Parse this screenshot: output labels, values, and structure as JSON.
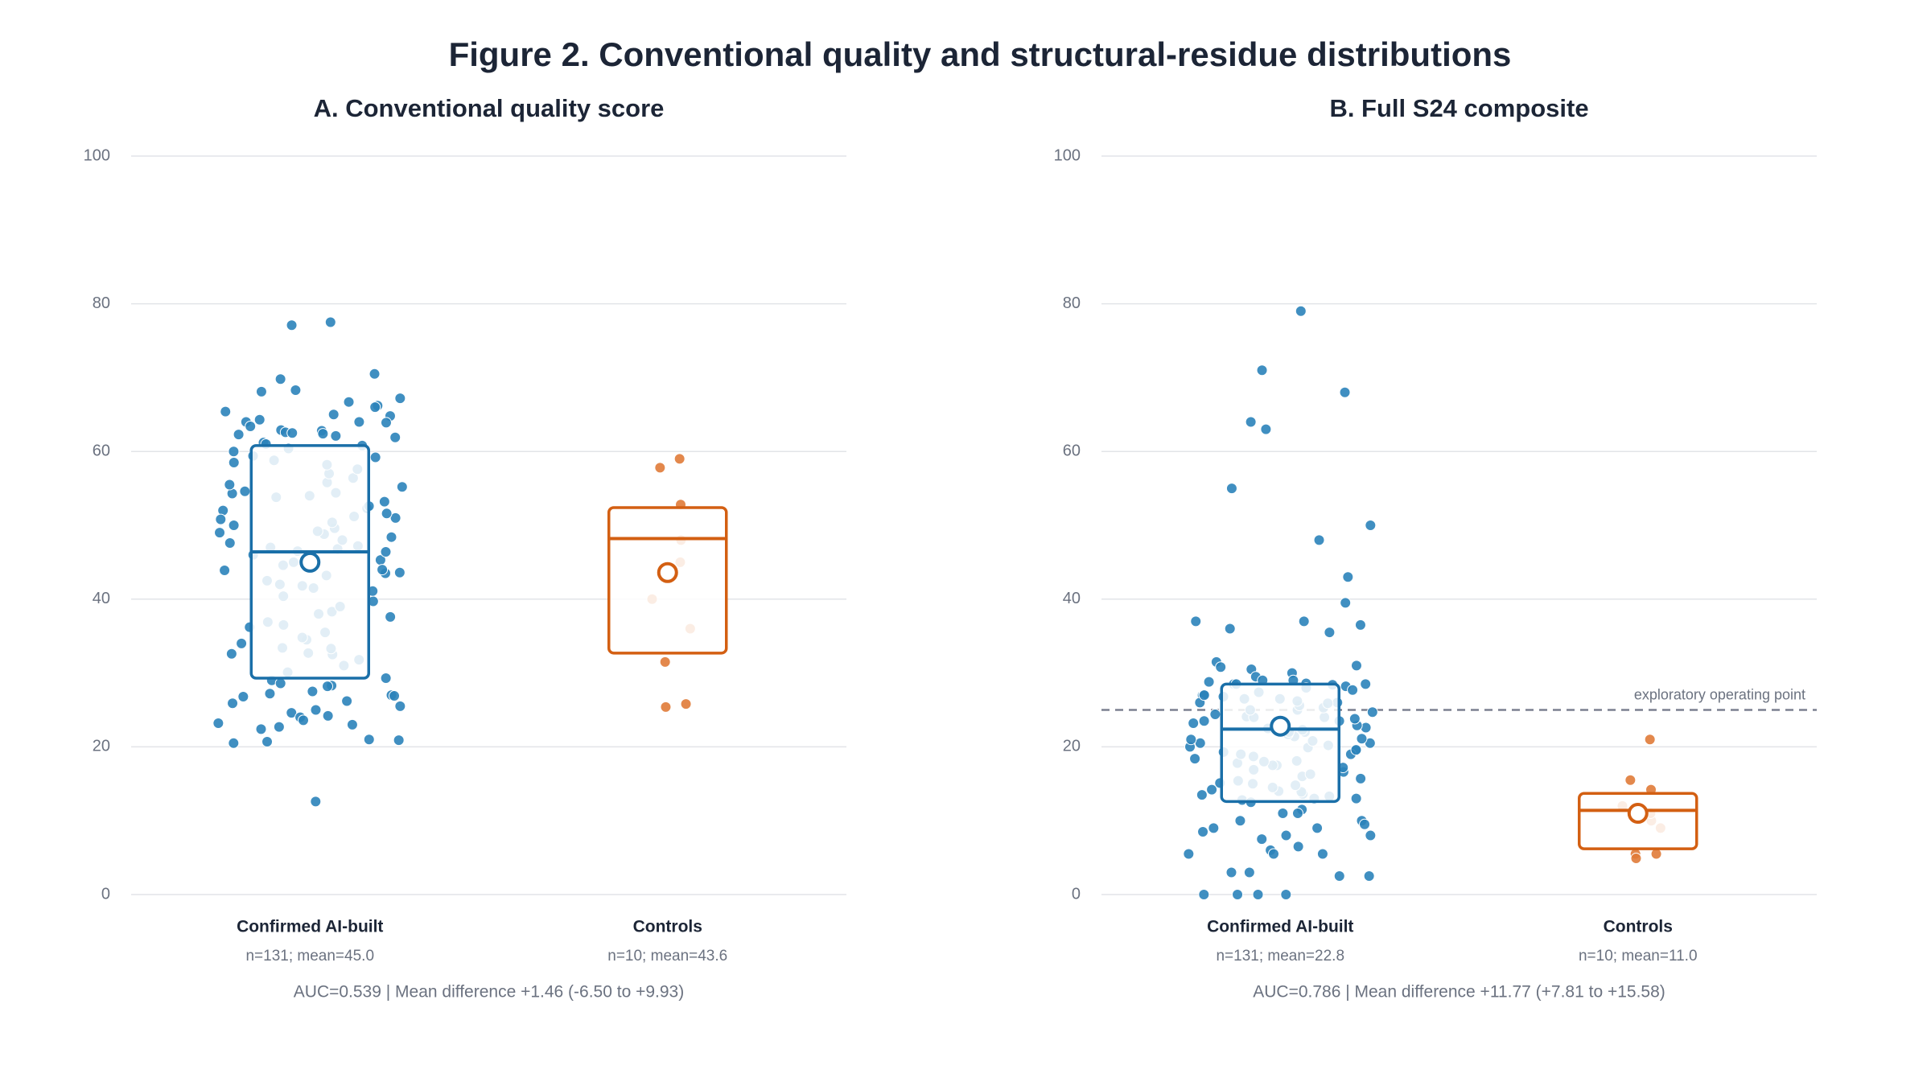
{
  "title": "Figure 2. Conventional quality and structural-residue distributions",
  "chart_data": [
    {
      "type": "box-strip",
      "title": "A. Conventional quality score",
      "ylim": [
        0,
        100
      ],
      "yticks": [
        0,
        20,
        40,
        60,
        80,
        100
      ],
      "grid": true,
      "note": "AUC=0.539 | Mean difference +1.46 (-6.50 to +9.93)",
      "groups": [
        {
          "name": "Confirmed AI-built",
          "stats_label": "n=131; mean=45.0",
          "color": "#2b83ba",
          "q1": 29.3,
          "median": 46.4,
          "q3": 60.8,
          "mean": 45.0,
          "points": [
            77.5,
            77.1,
            70.5,
            69.8,
            68.3,
            68.1,
            67.2,
            66.7,
            66.2,
            66.0,
            65.4,
            65.0,
            64.8,
            64.3,
            64.0,
            64.0,
            63.9,
            63.4,
            62.9,
            62.8,
            62.6,
            62.5,
            62.4,
            62.3,
            62.1,
            61.9,
            61.2,
            61.0,
            60.8,
            59.2,
            54.4,
            54.3,
            54.0,
            52.3,
            51.2,
            50.0,
            46.5,
            43.6,
            43.5,
            34.5,
            33.4,
            32.7,
            32.6,
            29.3,
            29.0,
            28.6,
            28.3,
            28.2,
            27.5,
            27.2,
            27.0,
            26.9,
            26.8,
            26.2,
            25.9,
            25.5,
            25.0,
            24.6,
            24.2,
            24.0,
            23.6,
            23.2,
            23.0,
            22.7,
            22.4,
            21.0,
            20.9,
            20.7,
            20.5,
            12.6,
            30.1,
            31.0,
            31.8,
            32.5,
            33.3,
            34.0,
            34.8,
            35.5,
            36.2,
            36.9,
            37.6,
            38.3,
            39.0,
            39.7,
            40.4,
            41.1,
            41.8,
            42.5,
            43.2,
            43.9,
            44.6,
            45.3,
            46.0,
            46.4,
            46.8,
            47.2,
            47.6,
            48.0,
            48.4,
            48.8,
            49.2,
            49.6,
            50.4,
            51.0,
            51.6,
            52.0,
            52.6,
            53.2,
            53.8,
            54.6,
            55.2,
            55.8,
            56.4,
            57.0,
            57.6,
            58.2,
            58.8,
            59.4,
            60.0,
            60.4,
            44.0,
            45.0,
            47.0,
            49.0,
            50.8,
            38.0,
            41.5,
            36.5,
            42.0,
            55.5,
            58.5
          ]
        },
        {
          "name": "Controls",
          "stats_label": "n=10; mean=43.6",
          "color": "#e07b39",
          "q1": 32.7,
          "median": 48.2,
          "q3": 52.4,
          "mean": 43.6,
          "points": [
            59.0,
            57.8,
            52.8,
            31.5,
            25.8,
            25.4,
            48.0,
            45.0,
            40.0,
            36.0
          ]
        }
      ]
    },
    {
      "type": "box-strip",
      "title": "B. Full S24 composite",
      "ylim": [
        0,
        100
      ],
      "yticks": [
        0,
        20,
        40,
        60,
        80,
        100
      ],
      "grid": true,
      "reference": {
        "value": 25,
        "label": "exploratory operating point"
      },
      "note": "AUC=0.786 | Mean difference +11.77 (+7.81 to +15.58)",
      "groups": [
        {
          "name": "Confirmed AI-built",
          "stats_label": "n=131; mean=22.8",
          "color": "#2b83ba",
          "q1": 12.6,
          "median": 22.4,
          "q3": 28.5,
          "mean": 22.8,
          "points": [
            79.0,
            71.0,
            68.0,
            64.0,
            63.0,
            55.0,
            50.0,
            48.0,
            43.0,
            39.5,
            37.0,
            37.0,
            36.5,
            36.0,
            35.5,
            31.5,
            31.0,
            30.8,
            30.5,
            30.0,
            29.5,
            29.0,
            29.0,
            28.8,
            28.6,
            28.5,
            28.5,
            28.5,
            28.4,
            28.2,
            28.0,
            27.0,
            26.5,
            26.0,
            24.0,
            23.5,
            22.5,
            20.5,
            19.5,
            17.5,
            15.0,
            14.0,
            13.5,
            13.0,
            12.8,
            12.5,
            11.5,
            11.0,
            11.0,
            10.0,
            10.0,
            9.5,
            9.0,
            9.0,
            8.5,
            8.0,
            8.0,
            7.5,
            6.5,
            6.0,
            5.5,
            5.5,
            5.5,
            3.0,
            3.0,
            2.5,
            2.5,
            0.0,
            0.0,
            0.0,
            0.0,
            13.0,
            13.3,
            13.6,
            13.9,
            14.2,
            14.5,
            14.8,
            15.1,
            15.4,
            15.7,
            16.0,
            16.3,
            16.6,
            16.9,
            17.2,
            17.5,
            17.8,
            18.1,
            18.4,
            18.7,
            19.0,
            19.3,
            19.6,
            19.9,
            20.2,
            20.5,
            20.8,
            21.1,
            21.4,
            21.7,
            22.0,
            22.3,
            22.6,
            22.9,
            23.2,
            23.5,
            23.8,
            24.1,
            24.4,
            24.7,
            25.0,
            25.3,
            25.6,
            25.9,
            26.2,
            26.5,
            26.8,
            27.1,
            27.4,
            27.7,
            18.0,
            19.0,
            20.0,
            21.0,
            22.0,
            23.0,
            24.0,
            25.0,
            26.0,
            27.0
          ]
        },
        {
          "name": "Controls",
          "stats_label": "n=10; mean=11.0",
          "color": "#e07b39",
          "q1": 6.2,
          "median": 11.4,
          "q3": 13.7,
          "mean": 11.0,
          "points": [
            21.0,
            15.5,
            14.2,
            5.5,
            5.5,
            4.9,
            10.0,
            11.0,
            12.0,
            9.0
          ]
        }
      ]
    }
  ]
}
